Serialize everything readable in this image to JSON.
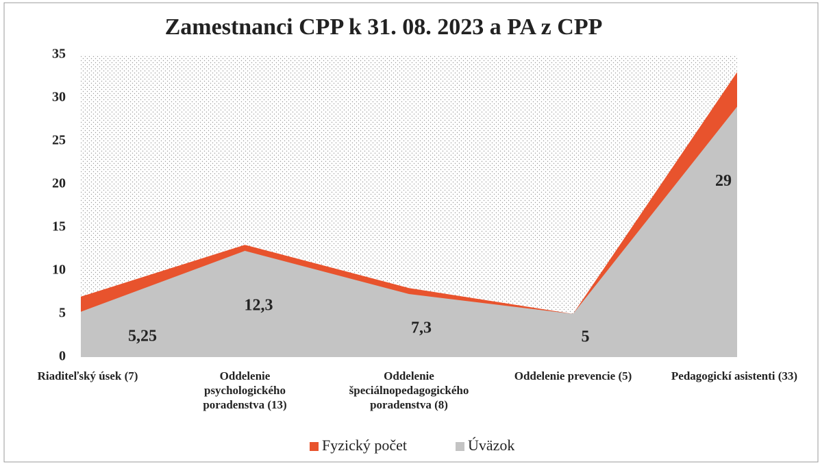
{
  "chart_data": {
    "type": "area",
    "title": "Zamestnanci CPP k 31. 08. 2023 a PA z CPP",
    "categories": [
      "Riaditeľský úsek (7)",
      "Oddelenie psychologického poradenstva (13)",
      "Oddelenie špeciálnopedagogického poradenstva (8)",
      "Oddelenie prevencie (5)",
      "Pedagogickí asistenti (33)"
    ],
    "series": [
      {
        "name": "Fyzický počet",
        "color": "#e8532d",
        "values": [
          7,
          13,
          8,
          5,
          33
        ]
      },
      {
        "name": "Úväzok",
        "color": "#c4c4c4",
        "values": [
          5.25,
          12.3,
          7.3,
          5,
          29
        ],
        "value_labels": [
          "5,25",
          "12,3",
          "7,3",
          "5",
          "29"
        ]
      }
    ],
    "ylim": [
      0,
      35
    ],
    "yticks": [
      0,
      5,
      10,
      15,
      20,
      25,
      30,
      35
    ]
  }
}
